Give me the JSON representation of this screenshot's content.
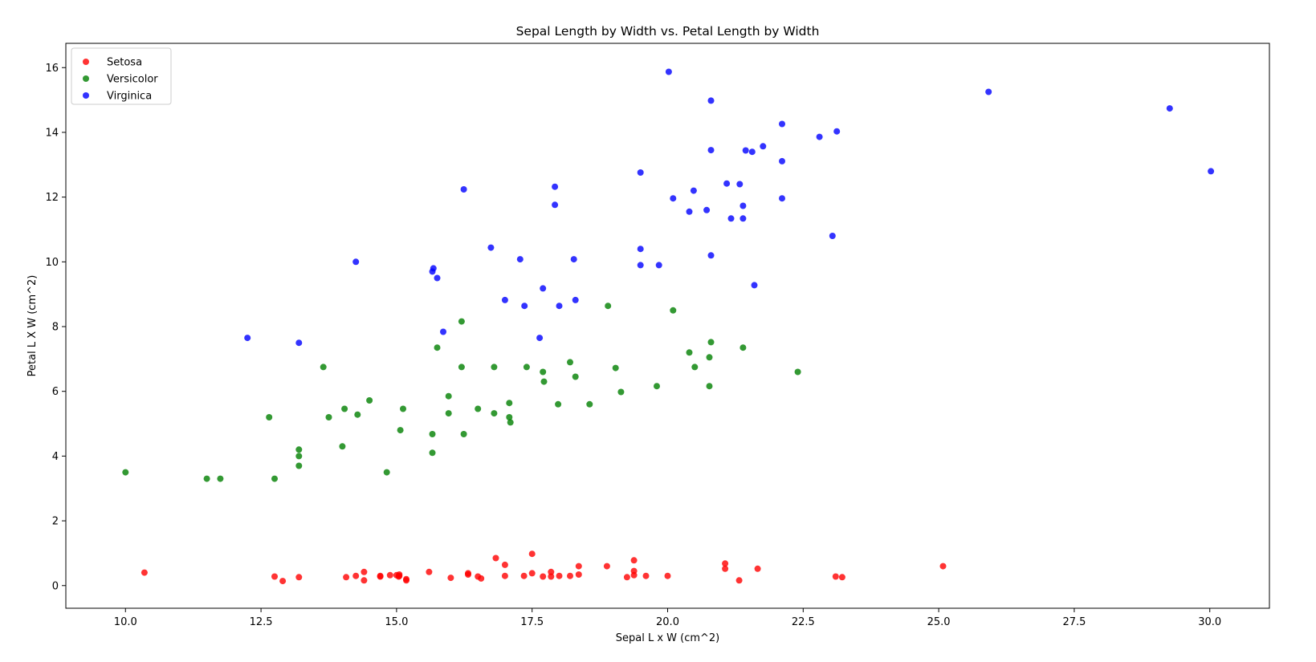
{
  "chart_data": {
    "type": "scatter",
    "title": "Sepal Length by Width vs. Petal Length by Width",
    "xlabel": "Sepal L x W (cm^2)",
    "ylabel": "Petal L X W (cm^2)",
    "xlim": [
      8.9,
      31.1
    ],
    "ylim": [
      -0.7,
      16.75
    ],
    "xticks": [
      10.0,
      12.5,
      15.0,
      17.5,
      20.0,
      22.5,
      25.0,
      27.5,
      30.0
    ],
    "xtick_labels": [
      "10.0",
      "12.5",
      "15.0",
      "17.5",
      "20.0",
      "22.5",
      "25.0",
      "27.5",
      "30.0"
    ],
    "yticks": [
      0,
      2,
      4,
      6,
      8,
      10,
      12,
      14,
      16
    ],
    "ytick_labels": [
      "0",
      "2",
      "4",
      "6",
      "8",
      "10",
      "12",
      "14",
      "16"
    ],
    "grid": false,
    "legend_position": "top-left",
    "series": [
      {
        "name": "Setosa",
        "color": "#ff0000",
        "points": [
          [
            10.35,
            0.4
          ],
          [
            12.75,
            0.28
          ],
          [
            12.9,
            0.14
          ],
          [
            13.2,
            0.26
          ],
          [
            14.07,
            0.26
          ],
          [
            14.25,
            0.3
          ],
          [
            14.4,
            0.42
          ],
          [
            14.4,
            0.16
          ],
          [
            14.7,
            0.28
          ],
          [
            14.7,
            0.3
          ],
          [
            14.88,
            0.32
          ],
          [
            15.0,
            0.32
          ],
          [
            15.04,
            0.28
          ],
          [
            15.05,
            0.3
          ],
          [
            15.05,
            0.34
          ],
          [
            15.18,
            0.2
          ],
          [
            15.18,
            0.16
          ],
          [
            15.6,
            0.42
          ],
          [
            16.0,
            0.24
          ],
          [
            16.32,
            0.38
          ],
          [
            16.32,
            0.34
          ],
          [
            16.5,
            0.28
          ],
          [
            16.56,
            0.22
          ],
          [
            16.83,
            0.85
          ],
          [
            17.0,
            0.64
          ],
          [
            17.0,
            0.3
          ],
          [
            17.35,
            0.3
          ],
          [
            17.5,
            0.98
          ],
          [
            17.5,
            0.38
          ],
          [
            17.7,
            0.28
          ],
          [
            17.85,
            0.42
          ],
          [
            17.85,
            0.28
          ],
          [
            18.0,
            0.3
          ],
          [
            18.2,
            0.3
          ],
          [
            18.36,
            0.6
          ],
          [
            18.36,
            0.34
          ],
          [
            18.88,
            0.6
          ],
          [
            19.25,
            0.26
          ],
          [
            19.38,
            0.78
          ],
          [
            19.38,
            0.45
          ],
          [
            19.38,
            0.32
          ],
          [
            19.6,
            0.3
          ],
          [
            20.0,
            0.3
          ],
          [
            21.06,
            0.68
          ],
          [
            21.06,
            0.52
          ],
          [
            21.32,
            0.16
          ],
          [
            21.66,
            0.52
          ],
          [
            23.1,
            0.28
          ],
          [
            23.22,
            0.26
          ],
          [
            25.08,
            0.6
          ]
        ]
      },
      {
        "name": "Versicolor",
        "color": "#008000",
        "points": [
          [
            10.0,
            3.5
          ],
          [
            11.5,
            3.3
          ],
          [
            11.75,
            3.3
          ],
          [
            12.65,
            5.2
          ],
          [
            12.75,
            3.3
          ],
          [
            13.2,
            4.2
          ],
          [
            13.2,
            4.0
          ],
          [
            13.2,
            3.7
          ],
          [
            13.65,
            6.75
          ],
          [
            13.75,
            5.2
          ],
          [
            14.0,
            4.3
          ],
          [
            14.04,
            5.46
          ],
          [
            14.28,
            5.28
          ],
          [
            14.5,
            5.72
          ],
          [
            14.82,
            3.5
          ],
          [
            15.07,
            4.8
          ],
          [
            15.12,
            5.46
          ],
          [
            15.66,
            4.68
          ],
          [
            15.66,
            4.1
          ],
          [
            15.75,
            7.35
          ],
          [
            15.96,
            5.85
          ],
          [
            15.96,
            5.32
          ],
          [
            16.2,
            8.16
          ],
          [
            16.2,
            6.75
          ],
          [
            16.24,
            4.68
          ],
          [
            16.5,
            5.46
          ],
          [
            16.8,
            6.75
          ],
          [
            16.8,
            5.32
          ],
          [
            17.08,
            5.64
          ],
          [
            17.08,
            5.2
          ],
          [
            17.1,
            5.04
          ],
          [
            17.4,
            6.75
          ],
          [
            17.7,
            6.6
          ],
          [
            17.72,
            6.3
          ],
          [
            17.98,
            5.6
          ],
          [
            18.2,
            6.9
          ],
          [
            18.3,
            6.45
          ],
          [
            18.56,
            5.6
          ],
          [
            18.9,
            8.64
          ],
          [
            19.04,
            6.72
          ],
          [
            19.14,
            5.98
          ],
          [
            19.8,
            6.16
          ],
          [
            20.1,
            8.5
          ],
          [
            20.4,
            7.2
          ],
          [
            20.5,
            6.75
          ],
          [
            20.77,
            7.05
          ],
          [
            20.8,
            7.52
          ],
          [
            20.77,
            6.16
          ],
          [
            21.39,
            7.35
          ],
          [
            22.4,
            6.6
          ]
        ]
      },
      {
        "name": "Virginica",
        "color": "#0000ff",
        "points": [
          [
            12.25,
            7.65
          ],
          [
            13.2,
            7.5
          ],
          [
            14.25,
            10.0
          ],
          [
            15.66,
            9.7
          ],
          [
            15.68,
            9.8
          ],
          [
            15.75,
            9.5
          ],
          [
            15.86,
            7.84
          ],
          [
            16.24,
            12.24
          ],
          [
            16.74,
            10.44
          ],
          [
            17.0,
            8.82
          ],
          [
            17.28,
            10.08
          ],
          [
            17.36,
            8.64
          ],
          [
            17.64,
            7.65
          ],
          [
            17.7,
            9.18
          ],
          [
            17.92,
            12.32
          ],
          [
            17.92,
            11.76
          ],
          [
            18.0,
            8.64
          ],
          [
            18.27,
            10.08
          ],
          [
            18.3,
            8.82
          ],
          [
            19.5,
            12.76
          ],
          [
            19.5,
            10.4
          ],
          [
            19.5,
            9.9
          ],
          [
            19.84,
            9.9
          ],
          [
            20.02,
            15.87
          ],
          [
            20.1,
            11.96
          ],
          [
            20.4,
            11.55
          ],
          [
            20.48,
            12.2
          ],
          [
            20.72,
            11.6
          ],
          [
            20.8,
            14.98
          ],
          [
            20.8,
            13.45
          ],
          [
            20.8,
            10.2
          ],
          [
            21.09,
            12.42
          ],
          [
            21.17,
            11.34
          ],
          [
            21.33,
            12.4
          ],
          [
            21.39,
            11.73
          ],
          [
            21.44,
            13.44
          ],
          [
            21.39,
            11.34
          ],
          [
            21.56,
            13.4
          ],
          [
            21.6,
            9.28
          ],
          [
            21.76,
            13.57
          ],
          [
            22.11,
            13.11
          ],
          [
            22.11,
            14.26
          ],
          [
            22.11,
            11.96
          ],
          [
            22.8,
            13.86
          ],
          [
            23.04,
            10.8
          ],
          [
            23.12,
            14.03
          ],
          [
            25.92,
            15.25
          ],
          [
            29.26,
            14.74
          ],
          [
            30.02,
            12.8
          ]
        ]
      }
    ]
  }
}
